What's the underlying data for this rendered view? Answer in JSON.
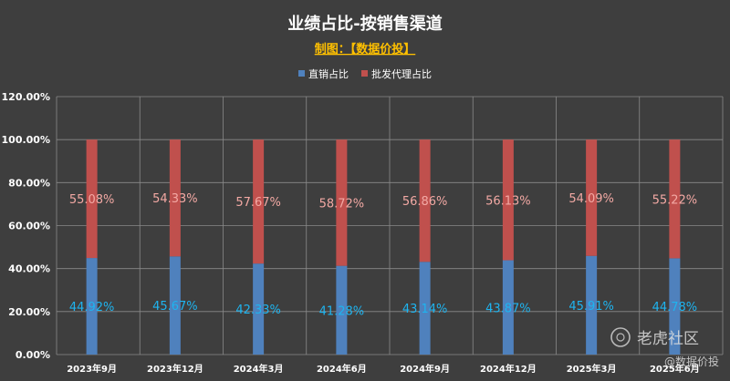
{
  "chart_data": {
    "type": "bar",
    "stacked": true,
    "title": "业绩占比-按销售渠道",
    "subtitle": "制图：【数据价投】",
    "categories": [
      "2023年9月",
      "2023年12月",
      "2024年3月",
      "2024年6月",
      "2024年9月",
      "2024年12月",
      "2025年3月",
      "2025年6月"
    ],
    "series": [
      {
        "name": "直销占比",
        "values": [
          44.92,
          45.67,
          42.33,
          41.28,
          43.14,
          43.87,
          45.91,
          44.78
        ]
      },
      {
        "name": "批发代理占比",
        "values": [
          55.08,
          54.33,
          57.67,
          58.72,
          56.86,
          56.13,
          54.09,
          55.22
        ]
      }
    ],
    "y_ticks": [
      "0.00%",
      "20.00%",
      "40.00%",
      "60.00%",
      "80.00%",
      "100.00%",
      "120.00%"
    ],
    "ylim": [
      0,
      120
    ],
    "grid": true,
    "legend_position": "top",
    "colors": {
      "direct": "#4f81bd",
      "wholesale": "#c0504d",
      "direct_label": "#1eb4f0",
      "wholesale_label": "#f3a9a4",
      "subtitle": "#ffc000"
    }
  },
  "watermark": {
    "brand": "老虎社区",
    "handle": "@数据价投"
  }
}
